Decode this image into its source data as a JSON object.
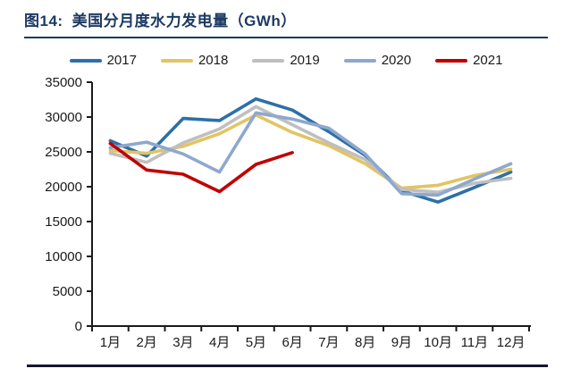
{
  "header": {
    "figure_label": "图14:",
    "title": "美国分月度水力发电量（GWh）"
  },
  "colors": {
    "title_navy": "#1C3A63",
    "axis": "#1a1a1a",
    "bottom_rule": "#17172B"
  },
  "chart_data": {
    "type": "line",
    "title": "美国分月度水力发电量（GWh）",
    "xlabel": "",
    "ylabel": "",
    "ylim": [
      0,
      35000
    ],
    "yticks": [
      0,
      5000,
      10000,
      15000,
      20000,
      25000,
      30000,
      35000
    ],
    "grid": false,
    "legend_position": "top",
    "categories": [
      "1月",
      "2月",
      "3月",
      "4月",
      "5月",
      "6月",
      "7月",
      "8月",
      "9月",
      "10月",
      "11月",
      "12月"
    ],
    "series": [
      {
        "name": "2017",
        "color": "#2D6FA8",
        "values": [
          26600,
          24400,
          29800,
          29500,
          32600,
          31000,
          27900,
          24500,
          19400,
          17800,
          19900,
          22100
        ]
      },
      {
        "name": "2018",
        "color": "#E2C462",
        "values": [
          25200,
          24800,
          25800,
          27600,
          30300,
          27800,
          25900,
          23300,
          19800,
          20200,
          21600,
          22500
        ]
      },
      {
        "name": "2019",
        "color": "#BFBFBF",
        "values": [
          24800,
          23500,
          26300,
          28300,
          31500,
          28900,
          26300,
          23900,
          19600,
          19200,
          20500,
          21200
        ]
      },
      {
        "name": "2020",
        "color": "#8EA8CE",
        "values": [
          25600,
          26400,
          24700,
          22100,
          30600,
          29700,
          28400,
          24700,
          19000,
          18800,
          21100,
          23300
        ]
      },
      {
        "name": "2021",
        "color": "#C00000",
        "values": [
          26200,
          22400,
          21800,
          19300,
          23200,
          24900,
          null,
          null,
          null,
          null,
          null,
          null
        ]
      }
    ]
  }
}
